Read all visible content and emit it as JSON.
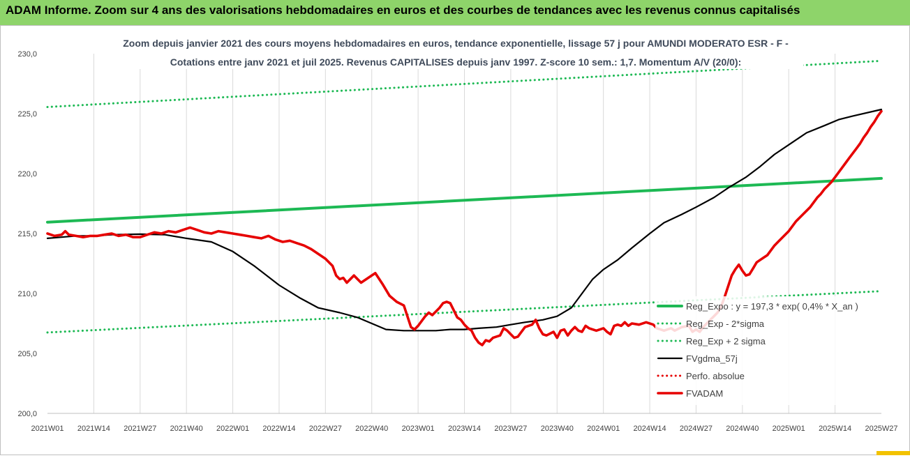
{
  "header": {
    "title": "ADAM Informe. Zoom sur 4 ans des valorisations hebdomadaires en euros et des courbes de tendances avec les revenus connus capitalisés"
  },
  "colors": {
    "header_bg": "#8ed46a",
    "grid": "#d9d9d9",
    "reg_expo": "#1db954",
    "sigma_bands": "#1db954",
    "fvgdma": "#000000",
    "perfo": "#e60000",
    "fvadam": "#e60000",
    "title_text": "#3f4a5a"
  },
  "chart_data": {
    "type": "line",
    "title_line1": "Zoom depuis janvier 2021 des cours moyens hebdomadaires en euros, tendance exponentielle, lissage 57 j pour AMUNDI MODERATO ESR - F -",
    "title_line2": "Cotations entre janv 2021 et juil 2025. Revenus CAPITALISES depuis janv 1997. Z-score 10 sem.: 1,7. Momentum A/V (20/0):",
    "xlabel": "",
    "ylabel": "",
    "ylim": [
      200,
      230
    ],
    "yticks": [
      "200,0",
      "205,0",
      "210,0",
      "215,0",
      "220,0",
      "225,0",
      "230,0"
    ],
    "xticks": [
      "2021W01",
      "2021W14",
      "2021W27",
      "2021W40",
      "2022W01",
      "2022W14",
      "2022W27",
      "2022W40",
      "2023W01",
      "2023W14",
      "2023W27",
      "2023W40",
      "2024W01",
      "2024W14",
      "2024W27",
      "2024W40",
      "2025W01",
      "2025W14",
      "2025W27"
    ],
    "x_range_weeks": [
      0,
      234
    ],
    "grid": "vertical",
    "legend_position": "right",
    "series": [
      {
        "name": "Reg_Expo : y = 197,3 * exp( 0,4% *  X_an )",
        "style": "solid-thick",
        "color": "#1db954",
        "points": [
          [
            0,
            215.95
          ],
          [
            234,
            219.6
          ]
        ]
      },
      {
        "name": "Reg_Exp - 2*sigma",
        "style": "dotted",
        "color": "#1db954",
        "points": [
          [
            0,
            206.75
          ],
          [
            234,
            210.2
          ]
        ]
      },
      {
        "name": "Reg_Exp + 2 sigma",
        "style": "dotted",
        "color": "#1db954",
        "points": [
          [
            0,
            225.55
          ],
          [
            234,
            229.4
          ]
        ]
      },
      {
        "name": "FVgdma_57j",
        "style": "solid",
        "color": "#000000",
        "points": [
          [
            0,
            214.6
          ],
          [
            4,
            214.7
          ],
          [
            8,
            214.8
          ],
          [
            13,
            214.8
          ],
          [
            18,
            214.9
          ],
          [
            26,
            214.95
          ],
          [
            33,
            214.9
          ],
          [
            39,
            214.6
          ],
          [
            46,
            214.3
          ],
          [
            52,
            213.5
          ],
          [
            58,
            212.3
          ],
          [
            65,
            210.7
          ],
          [
            71,
            209.6
          ],
          [
            76,
            208.8
          ],
          [
            82,
            208.4
          ],
          [
            87,
            208.0
          ],
          [
            91,
            207.5
          ],
          [
            95,
            207.0
          ],
          [
            100,
            206.9
          ],
          [
            104,
            206.9
          ],
          [
            109,
            206.9
          ],
          [
            113,
            207.0
          ],
          [
            117,
            207.0
          ],
          [
            121,
            207.1
          ],
          [
            126,
            207.2
          ],
          [
            130,
            207.4
          ],
          [
            134,
            207.6
          ],
          [
            139,
            207.8
          ],
          [
            143,
            208.1
          ],
          [
            147,
            208.8
          ],
          [
            150,
            210.0
          ],
          [
            153,
            211.2
          ],
          [
            156,
            212.0
          ],
          [
            160,
            212.8
          ],
          [
            164,
            213.8
          ],
          [
            169,
            215.0
          ],
          [
            173,
            215.9
          ],
          [
            178,
            216.6
          ],
          [
            182,
            217.2
          ],
          [
            187,
            218.0
          ],
          [
            191,
            218.8
          ],
          [
            196,
            219.7
          ],
          [
            200,
            220.6
          ],
          [
            204,
            221.6
          ],
          [
            209,
            222.6
          ],
          [
            213,
            223.4
          ],
          [
            218,
            224.0
          ],
          [
            222,
            224.5
          ],
          [
            226,
            224.8
          ],
          [
            234,
            225.35
          ]
        ]
      },
      {
        "name": "Perfo. absolue",
        "style": "dotted",
        "color": "#e60000",
        "points": []
      },
      {
        "name": "FVADAM",
        "style": "solid-thick",
        "color": "#e60000",
        "points": [
          [
            0,
            215.0
          ],
          [
            2,
            214.8
          ],
          [
            4,
            214.9
          ],
          [
            5,
            215.2
          ],
          [
            6,
            214.9
          ],
          [
            8,
            214.8
          ],
          [
            10,
            214.7
          ],
          [
            12,
            214.8
          ],
          [
            14,
            214.8
          ],
          [
            16,
            214.9
          ],
          [
            18,
            215.0
          ],
          [
            20,
            214.8
          ],
          [
            22,
            214.9
          ],
          [
            24,
            214.7
          ],
          [
            26,
            214.7
          ],
          [
            28,
            214.9
          ],
          [
            30,
            215.1
          ],
          [
            32,
            215.0
          ],
          [
            34,
            215.2
          ],
          [
            36,
            215.1
          ],
          [
            38,
            215.3
          ],
          [
            40,
            215.5
          ],
          [
            42,
            215.3
          ],
          [
            44,
            215.1
          ],
          [
            46,
            215.0
          ],
          [
            48,
            215.2
          ],
          [
            50,
            215.1
          ],
          [
            52,
            215.0
          ],
          [
            54,
            214.9
          ],
          [
            56,
            214.8
          ],
          [
            58,
            214.7
          ],
          [
            60,
            214.6
          ],
          [
            62,
            214.8
          ],
          [
            64,
            214.5
          ],
          [
            66,
            214.3
          ],
          [
            68,
            214.4
          ],
          [
            70,
            214.2
          ],
          [
            72,
            214.0
          ],
          [
            74,
            213.7
          ],
          [
            76,
            213.3
          ],
          [
            78,
            212.9
          ],
          [
            80,
            212.3
          ],
          [
            81,
            211.5
          ],
          [
            82,
            211.2
          ],
          [
            83,
            211.3
          ],
          [
            84,
            210.9
          ],
          [
            86,
            211.5
          ],
          [
            88,
            210.9
          ],
          [
            90,
            211.3
          ],
          [
            92,
            211.7
          ],
          [
            94,
            210.8
          ],
          [
            96,
            209.8
          ],
          [
            98,
            209.3
          ],
          [
            100,
            209.0
          ],
          [
            101,
            208.1
          ],
          [
            102,
            207.2
          ],
          [
            103,
            207.0
          ],
          [
            104,
            207.3
          ],
          [
            106,
            208.1
          ],
          [
            107,
            208.4
          ],
          [
            108,
            208.2
          ],
          [
            110,
            208.8
          ],
          [
            111,
            209.2
          ],
          [
            112,
            209.3
          ],
          [
            113,
            209.2
          ],
          [
            114,
            208.6
          ],
          [
            115,
            208.0
          ],
          [
            116,
            207.8
          ],
          [
            117,
            207.4
          ],
          [
            118,
            207.1
          ],
          [
            119,
            206.9
          ],
          [
            120,
            206.3
          ],
          [
            121,
            205.9
          ],
          [
            122,
            205.7
          ],
          [
            123,
            206.1
          ],
          [
            124,
            206.0
          ],
          [
            125,
            206.3
          ],
          [
            127,
            206.5
          ],
          [
            128,
            207.1
          ],
          [
            129,
            206.9
          ],
          [
            130,
            206.6
          ],
          [
            131,
            206.3
          ],
          [
            132,
            206.4
          ],
          [
            134,
            207.2
          ],
          [
            136,
            207.4
          ],
          [
            137,
            207.8
          ],
          [
            138,
            207.1
          ],
          [
            139,
            206.6
          ],
          [
            140,
            206.5
          ],
          [
            142,
            206.8
          ],
          [
            143,
            206.3
          ],
          [
            144,
            206.9
          ],
          [
            145,
            207.0
          ],
          [
            146,
            206.5
          ],
          [
            147,
            206.9
          ],
          [
            148,
            207.2
          ],
          [
            149,
            206.9
          ],
          [
            150,
            206.8
          ],
          [
            151,
            207.3
          ],
          [
            152,
            207.1
          ],
          [
            154,
            206.9
          ],
          [
            156,
            207.1
          ],
          [
            157,
            206.8
          ],
          [
            158,
            206.6
          ],
          [
            159,
            207.3
          ],
          [
            160,
            207.4
          ],
          [
            161,
            207.3
          ],
          [
            162,
            207.6
          ],
          [
            163,
            207.3
          ],
          [
            164,
            207.5
          ],
          [
            166,
            207.4
          ],
          [
            168,
            207.6
          ],
          [
            170,
            207.4
          ],
          [
            171,
            207.1
          ],
          [
            172,
            207.0
          ],
          [
            173,
            206.9
          ],
          [
            174,
            207.0
          ],
          [
            175,
            207.1
          ],
          [
            176,
            206.9
          ],
          [
            178,
            207.2
          ],
          [
            180,
            207.3
          ],
          [
            181,
            206.8
          ],
          [
            182,
            207.0
          ],
          [
            183,
            206.8
          ],
          [
            184,
            207.2
          ],
          [
            186,
            207.8
          ],
          [
            187,
            208.1
          ],
          [
            188,
            208.4
          ],
          [
            189,
            208.9
          ],
          [
            190,
            209.7
          ],
          [
            191,
            210.6
          ],
          [
            192,
            211.5
          ],
          [
            193,
            212.0
          ],
          [
            194,
            212.4
          ],
          [
            195,
            211.9
          ],
          [
            196,
            211.5
          ],
          [
            197,
            211.6
          ],
          [
            198,
            212.1
          ],
          [
            199,
            212.6
          ],
          [
            200,
            212.8
          ],
          [
            201,
            213.0
          ],
          [
            202,
            213.2
          ],
          [
            203,
            213.6
          ],
          [
            204,
            214.0
          ],
          [
            205,
            214.3
          ],
          [
            206,
            214.6
          ],
          [
            207,
            214.9
          ],
          [
            208,
            215.2
          ],
          [
            209,
            215.6
          ],
          [
            210,
            216.0
          ],
          [
            211,
            216.3
          ],
          [
            212,
            216.6
          ],
          [
            213,
            216.9
          ],
          [
            214,
            217.2
          ],
          [
            215,
            217.6
          ],
          [
            216,
            218.0
          ],
          [
            217,
            218.3
          ],
          [
            218,
            218.7
          ],
          [
            219,
            219.0
          ],
          [
            220,
            219.3
          ],
          [
            221,
            219.7
          ],
          [
            222,
            220.1
          ],
          [
            223,
            220.5
          ],
          [
            224,
            220.9
          ],
          [
            225,
            221.3
          ],
          [
            226,
            221.7
          ],
          [
            227,
            222.1
          ],
          [
            228,
            222.5
          ],
          [
            229,
            223.0
          ],
          [
            230,
            223.4
          ],
          [
            231,
            223.9
          ],
          [
            232,
            224.3
          ],
          [
            233,
            224.8
          ],
          [
            234,
            225.2
          ]
        ]
      }
    ]
  }
}
